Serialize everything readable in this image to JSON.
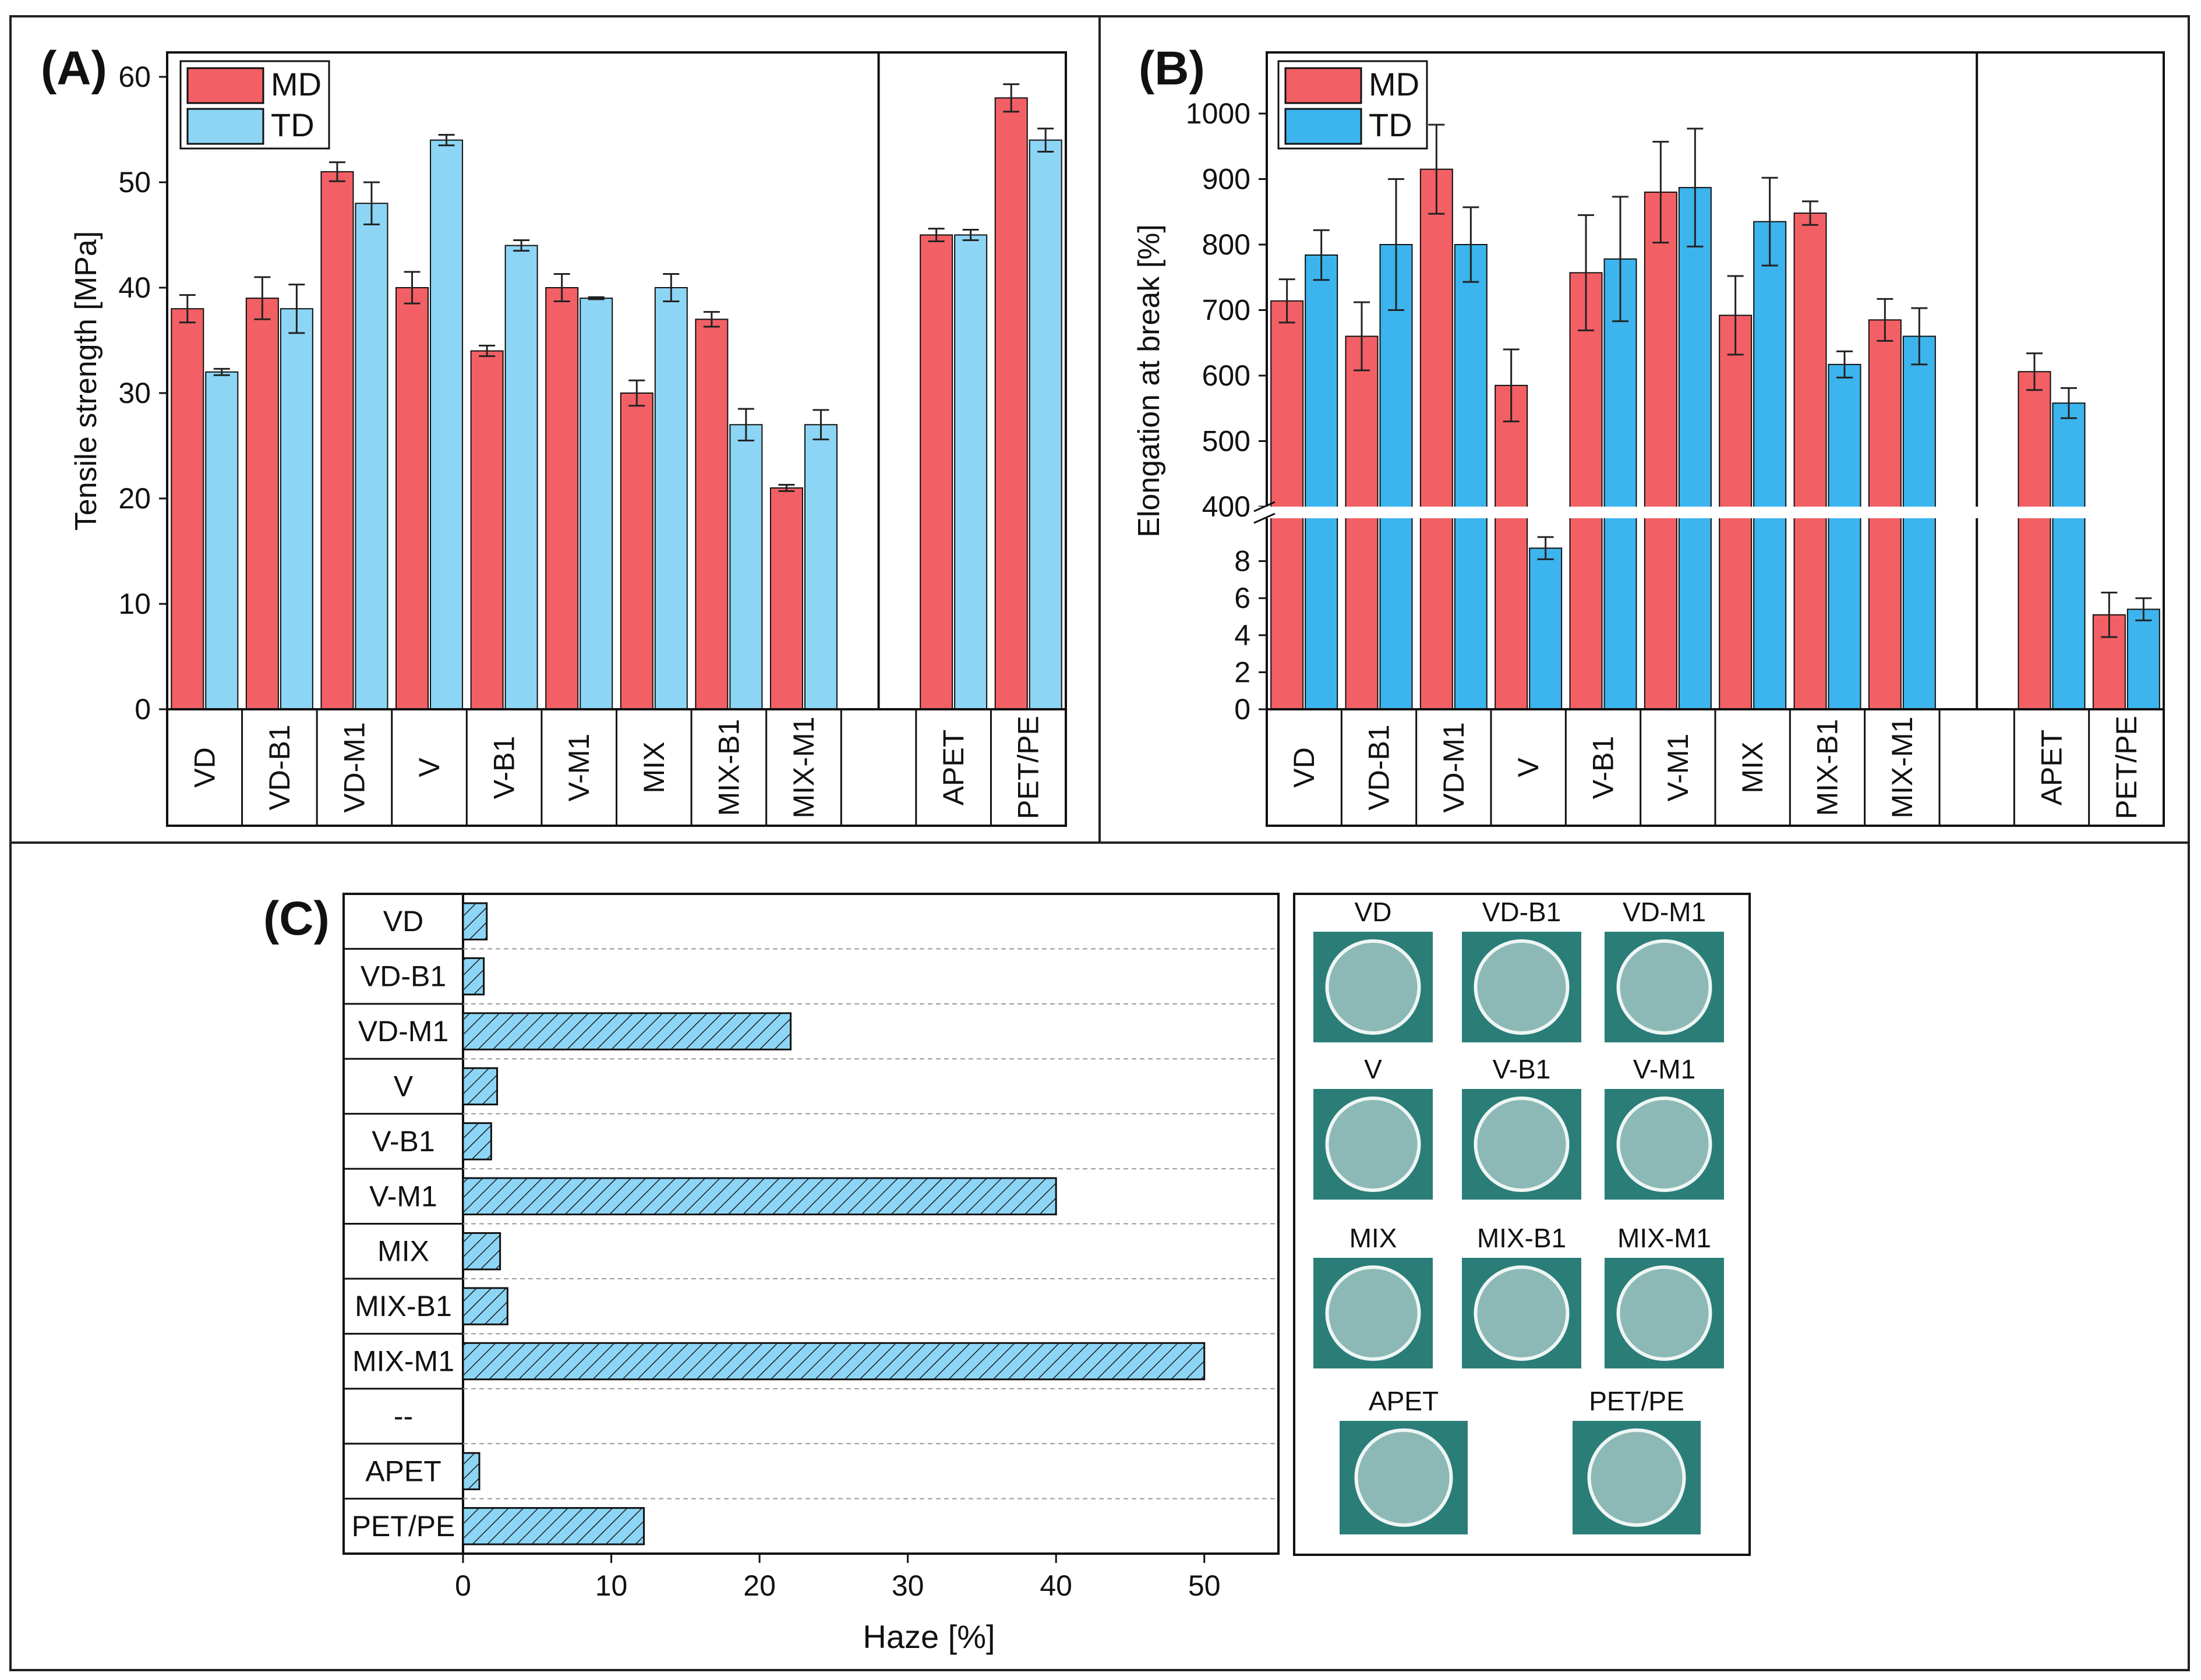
{
  "colors": {
    "md": "#F26065",
    "td": "#8DD5F5",
    "td_b": "#3CB4EE",
    "haze": "#8DD5F5",
    "bar_stroke": "#111111",
    "disc_bg": "#2B7D78"
  },
  "panels": {
    "a": "(A)",
    "b": "(B)",
    "c": "(C)"
  },
  "chart_data": [
    {
      "type": "bar",
      "panel": "(A)",
      "ylabel": "Tensile strength [MPa]",
      "ylim": [
        0,
        60
      ],
      "yticks": [
        0,
        10,
        20,
        30,
        40,
        50,
        60
      ],
      "legend": "top-left",
      "categories": [
        "VD",
        "VD-B1",
        "VD-M1",
        "V",
        "V-B1",
        "V-M1",
        "MIX",
        "MIX-B1",
        "MIX-M1",
        "",
        "APET",
        "PET/PE"
      ],
      "series": [
        {
          "name": "MD",
          "values": [
            38,
            39,
            51,
            40,
            34,
            40,
            30,
            37,
            21,
            null,
            45,
            58
          ],
          "errors": [
            1.3,
            2.0,
            0.9,
            1.5,
            0.5,
            1.3,
            1.2,
            0.7,
            0.3,
            null,
            0.6,
            1.3
          ]
        },
        {
          "name": "TD",
          "values": [
            32,
            38,
            48,
            54,
            44,
            39,
            40,
            27,
            27,
            null,
            45,
            54
          ],
          "errors": [
            0.3,
            2.3,
            2.0,
            0.5,
            0.5,
            0.1,
            1.3,
            1.5,
            1.4,
            null,
            0.5,
            1.1
          ]
        }
      ]
    },
    {
      "type": "bar",
      "panel": "(B)",
      "ylabel": "Elongation at break [%]",
      "broken_axis": {
        "lower": [
          0,
          10
        ],
        "upper": [
          400,
          1000
        ]
      },
      "yticks_lower": [
        0,
        2,
        4,
        6,
        8
      ],
      "yticks_upper": [
        400,
        500,
        600,
        700,
        800,
        900,
        1000
      ],
      "legend": "top-left",
      "categories": [
        "VD",
        "VD-B1",
        "VD-M1",
        "V",
        "V-B1",
        "V-M1",
        "MIX",
        "MIX-B1",
        "MIX-M1",
        "",
        "APET",
        "PET/PE"
      ],
      "series": [
        {
          "name": "MD",
          "values": [
            714,
            660,
            915,
            585,
            757,
            880,
            692,
            848,
            685,
            null,
            606,
            5.1
          ],
          "errors": [
            33,
            52,
            68,
            55,
            88,
            77,
            60,
            18,
            32,
            null,
            28,
            1.2
          ]
        },
        {
          "name": "TD",
          "values": [
            784,
            800,
            800,
            8.7,
            778,
            887,
            835,
            617,
            660,
            null,
            558,
            5.4
          ],
          "errors": [
            38,
            100,
            57,
            0.6,
            95,
            90,
            67,
            20,
            43,
            null,
            23,
            0.6
          ]
        }
      ]
    },
    {
      "type": "bar",
      "orientation": "horizontal",
      "panel": "(C)",
      "xlabel": "Haze [%]",
      "xlim": [
        0,
        55
      ],
      "xticks": [
        0,
        10,
        20,
        30,
        40,
        50
      ],
      "categories": [
        "VD",
        "VD-B1",
        "VD-M1",
        "V",
        "V-B1",
        "V-M1",
        "MIX",
        "MIX-B1",
        "MIX-M1",
        "--",
        "APET",
        "PET/PE"
      ],
      "values": [
        1.6,
        1.4,
        22.1,
        2.3,
        1.9,
        40.0,
        2.5,
        3.0,
        50.0,
        null,
        1.1,
        12.2
      ]
    }
  ],
  "photos": {
    "rows": [
      [
        "VD",
        "VD-B1",
        "VD-M1"
      ],
      [
        "V",
        "V-B1",
        "V-M1"
      ],
      [
        "MIX",
        "MIX-B1",
        "MIX-M1"
      ],
      [
        "APET",
        "PET/PE"
      ]
    ]
  }
}
